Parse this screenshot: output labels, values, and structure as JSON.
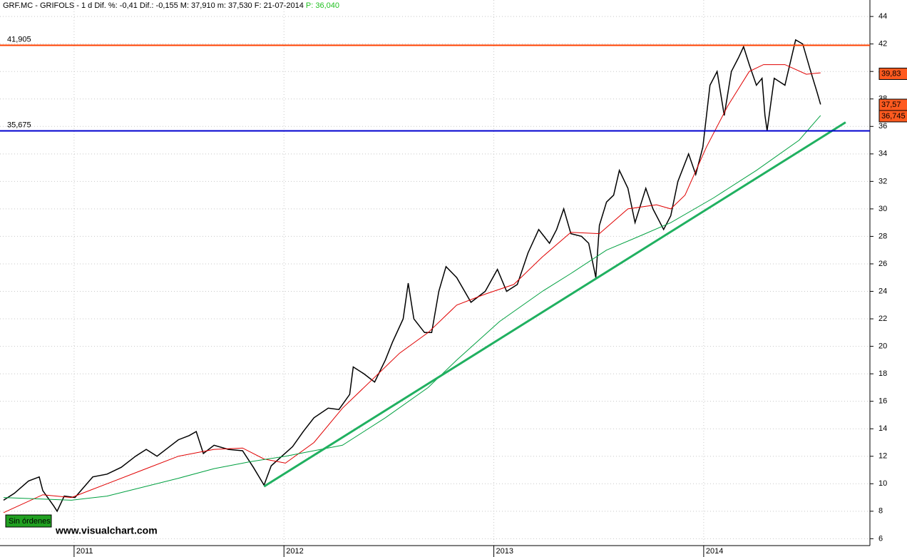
{
  "chart_data": {
    "type": "line",
    "title": "GRF.MC - GRIFOLS - 1 d Dif. %: -0,41 Dif.: -0,155 M: 37,910 m: 37,530 F: 21-07-2014",
    "subtitle": "P: 36,040",
    "xlim": [
      2010.647,
      2014.792
    ],
    "xticks": [
      2011,
      2012,
      2013,
      2014
    ],
    "ylim": [
      5.5,
      45.2
    ],
    "yticks": [
      6,
      8,
      10,
      12,
      14,
      16,
      18,
      20,
      22,
      24,
      26,
      28,
      30,
      32,
      34,
      36,
      38,
      40,
      42,
      44
    ],
    "grid": true,
    "series": [
      {
        "color": "#000000",
        "x": [
          2010.664,
          2010.715,
          2010.783,
          2010.834,
          2010.851,
          2010.902,
          2010.919,
          2010.953,
          2011.004,
          2011.038,
          2011.089,
          2011.157,
          2011.225,
          2011.293,
          2011.344,
          2011.395,
          2011.446,
          2011.497,
          2011.548,
          2011.582,
          2011.616,
          2011.667,
          2011.735,
          2011.803,
          2011.854,
          2011.905,
          2011.939,
          2011.99,
          2012.041,
          2012.092,
          2012.143,
          2012.211,
          2012.262,
          2012.313,
          2012.33,
          2012.381,
          2012.432,
          2012.483,
          2012.517,
          2012.568,
          2012.592,
          2012.619,
          2012.67,
          2012.704,
          2012.738,
          2012.772,
          2012.823,
          2012.891,
          2012.959,
          2013.017,
          2013.061,
          2013.112,
          2013.163,
          2013.214,
          2013.265,
          2013.299,
          2013.333,
          2013.367,
          2013.418,
          2013.452,
          2013.486,
          2013.503,
          2013.537,
          2013.571,
          2013.598,
          2013.639,
          2013.673,
          2013.724,
          2013.758,
          2013.809,
          2013.843,
          2013.877,
          2013.928,
          2013.962,
          2013.996,
          2014.03,
          2014.064,
          2014.098,
          2014.132,
          2014.166,
          2014.19,
          2014.217,
          2014.251,
          2014.278,
          2014.292,
          2014.302,
          2014.336,
          2014.387,
          2014.438,
          2014.472,
          2014.506,
          2014.54,
          2014.557
        ],
        "values": [
          8.8,
          9.3,
          10.2,
          10.5,
          9.5,
          8.4,
          8.0,
          9.1,
          9.0,
          9.6,
          10.5,
          10.7,
          11.2,
          12.0,
          12.5,
          12.0,
          12.6,
          13.2,
          13.5,
          13.8,
          12.2,
          12.8,
          12.5,
          12.4,
          11.2,
          9.9,
          11.3,
          12.0,
          12.7,
          13.8,
          14.8,
          15.5,
          15.4,
          16.5,
          18.5,
          18.0,
          17.4,
          19.0,
          20.3,
          22.0,
          24.6,
          22.0,
          21.0,
          21.0,
          24.0,
          25.8,
          25.0,
          23.2,
          24.0,
          25.6,
          24.0,
          24.5,
          26.8,
          28.5,
          27.5,
          28.5,
          30.0,
          28.2,
          28.0,
          27.5,
          25.0,
          28.8,
          30.5,
          31.0,
          32.8,
          31.5,
          29.0,
          31.5,
          30.0,
          28.5,
          29.5,
          32.0,
          34.0,
          32.5,
          34.5,
          39.0,
          40.0,
          36.8,
          40.0,
          41.0,
          41.8,
          40.5,
          39.0,
          39.5,
          36.8,
          35.7,
          39.5,
          39.0,
          42.3,
          42.0,
          40.2,
          38.5,
          37.6
        ]
      },
      {
        "color": "#e00000",
        "x": [
          2010.664,
          2010.851,
          2010.987,
          2011.157,
          2011.327,
          2011.497,
          2011.667,
          2011.803,
          2011.905,
          2012.007,
          2012.143,
          2012.279,
          2012.415,
          2012.551,
          2012.687,
          2012.823,
          2012.959,
          2013.095,
          2013.231,
          2013.367,
          2013.503,
          2013.639,
          2013.775,
          2013.843,
          2013.911,
          2014.013,
          2014.115,
          2014.217,
          2014.285,
          2014.387,
          2014.489,
          2014.557
        ],
        "values": [
          7.9,
          9.2,
          9.0,
          10.0,
          11.0,
          12.0,
          12.5,
          12.6,
          11.8,
          11.5,
          13.0,
          15.5,
          17.5,
          19.5,
          21.0,
          23.0,
          23.8,
          24.5,
          26.5,
          28.3,
          28.2,
          30.0,
          30.3,
          30.0,
          31.0,
          34.5,
          37.5,
          40.0,
          40.5,
          40.5,
          39.8,
          39.9
        ]
      },
      {
        "color": "#00a040",
        "x": [
          2010.664,
          2010.987,
          2011.157,
          2011.497,
          2011.667,
          2011.837,
          2012.007,
          2012.279,
          2012.483,
          2012.687,
          2012.823,
          2013.027,
          2013.231,
          2013.367,
          2013.537,
          2013.707,
          2013.843,
          2014.047,
          2014.251,
          2014.455,
          2014.557
        ],
        "values": [
          9.0,
          8.8,
          9.1,
          10.4,
          11.1,
          11.6,
          12.0,
          12.8,
          14.8,
          17.0,
          19.0,
          21.8,
          24.0,
          25.3,
          27.0,
          28.1,
          29.0,
          30.8,
          32.8,
          35.0,
          36.8
        ]
      },
      {
        "color": "#20b060",
        "x": [
          2011.905,
          2014.676
        ],
        "values": [
          9.8,
          36.3
        ]
      }
    ],
    "levels": [
      {
        "value": 41.905,
        "label": "41,905",
        "color": "#ff4000"
      },
      {
        "value": 35.675,
        "label": "35,675",
        "color": "#0000d0"
      }
    ],
    "markers": [
      {
        "value": 39.83,
        "label": "39,83"
      },
      {
        "value": 37.57,
        "label": "37,57"
      },
      {
        "value": 36.745,
        "label": "36,745"
      }
    ],
    "status": "Sin órdenes",
    "watermark": "www.visualchart.com"
  }
}
